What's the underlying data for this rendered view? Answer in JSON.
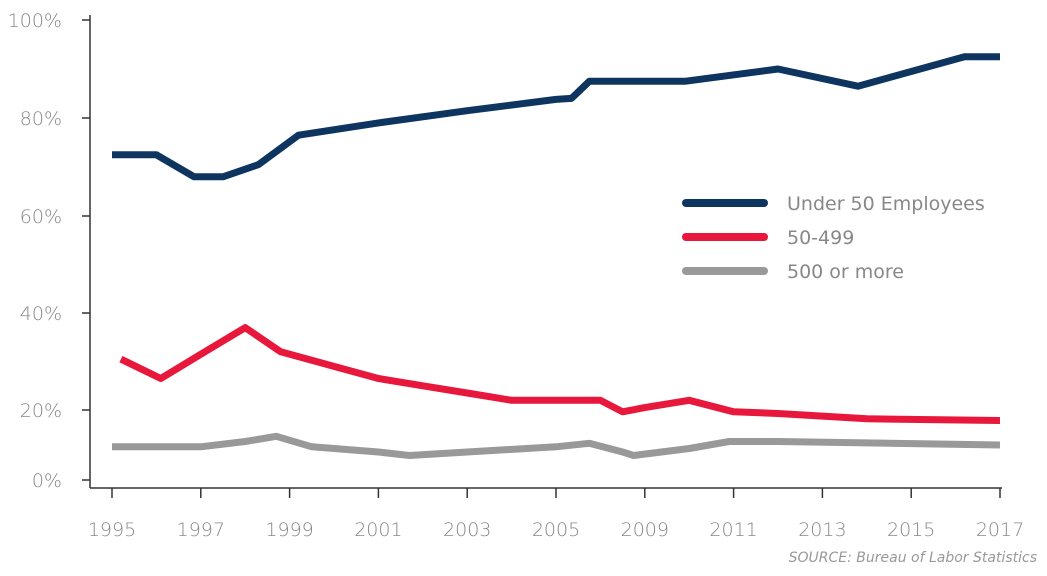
{
  "chart_data": {
    "type": "line",
    "categories": [
      "1995",
      "1996",
      "1997",
      "1998",
      "1999",
      "2000",
      "2001",
      "2002",
      "2003",
      "2004",
      "2005",
      "2006",
      "2009",
      "2010",
      "2011",
      "2012",
      "2013",
      "2014",
      "2015",
      "2016",
      "2017"
    ],
    "x_tick_labels": [
      "1995",
      "1997",
      "1999",
      "2001",
      "2003",
      "2005",
      "2009",
      "2011",
      "2013",
      "2015",
      "2017"
    ],
    "y_tick_labels": [
      "0%",
      "20%",
      "40%",
      "60%",
      "80%",
      "100%"
    ],
    "ylim": [
      0,
      100
    ],
    "xlabel": "",
    "ylabel": "",
    "title": "",
    "grid": false,
    "legend_position": "right",
    "series": [
      {
        "name": "Under 50 Employees",
        "color": "#0d3560",
        "points": [
          [
            1995,
            72.5
          ],
          [
            1996,
            72.5
          ],
          [
            1996.85,
            68
          ],
          [
            1997.5,
            68
          ],
          [
            1998.3,
            70.5
          ],
          [
            1999.2,
            76.5
          ],
          [
            2001,
            79
          ],
          [
            2003,
            81.5
          ],
          [
            2005,
            83.8
          ],
          [
            2005.7,
            84
          ],
          [
            2006.5,
            87.5
          ],
          [
            2008,
            87.5
          ],
          [
            2009.9,
            87.5
          ],
          [
            2012,
            90
          ],
          [
            2013.8,
            86.5
          ],
          [
            2016.2,
            92.5
          ],
          [
            2017,
            92.5
          ]
        ]
      },
      {
        "name": "50-499",
        "color": "#e8173c",
        "points": [
          [
            1995.2,
            30.5
          ],
          [
            1996.1,
            26.5
          ],
          [
            1997,
            31.5
          ],
          [
            1998,
            37
          ],
          [
            1998.8,
            32
          ],
          [
            2000,
            29
          ],
          [
            2001,
            26.5
          ],
          [
            2002,
            25
          ],
          [
            2003,
            23.5
          ],
          [
            2004,
            22
          ],
          [
            2005,
            22
          ],
          [
            2006,
            22
          ],
          [
            2007,
            22
          ],
          [
            2008,
            19.5
          ],
          [
            2009,
            20.5
          ],
          [
            2010,
            22
          ],
          [
            2011,
            19.5
          ],
          [
            2012,
            19
          ],
          [
            2014,
            17.5
          ],
          [
            2017,
            17
          ]
        ]
      },
      {
        "name": "500 or more",
        "color": "#999999",
        "points": [
          [
            1995,
            9.5
          ],
          [
            1996,
            9.5
          ],
          [
            1997,
            9.5
          ],
          [
            1998,
            11
          ],
          [
            1998.7,
            12.5
          ],
          [
            1999.5,
            9.5
          ],
          [
            2001,
            8
          ],
          [
            2001.7,
            7
          ],
          [
            2003,
            8
          ],
          [
            2005,
            9.5
          ],
          [
            2006.5,
            10.5
          ],
          [
            2008,
            8
          ],
          [
            2008.5,
            7
          ],
          [
            2010,
            9
          ],
          [
            2010.9,
            11
          ],
          [
            2012,
            11
          ],
          [
            2017,
            10
          ]
        ]
      }
    ]
  },
  "legend": [
    {
      "label": "Under 50 Employees",
      "color": "#0d3560"
    },
    {
      "label": "50-499",
      "color": "#e8173c"
    },
    {
      "label": "500 or more",
      "color": "#999999"
    }
  ],
  "source": "SOURCE: Bureau of Labor Statistics"
}
